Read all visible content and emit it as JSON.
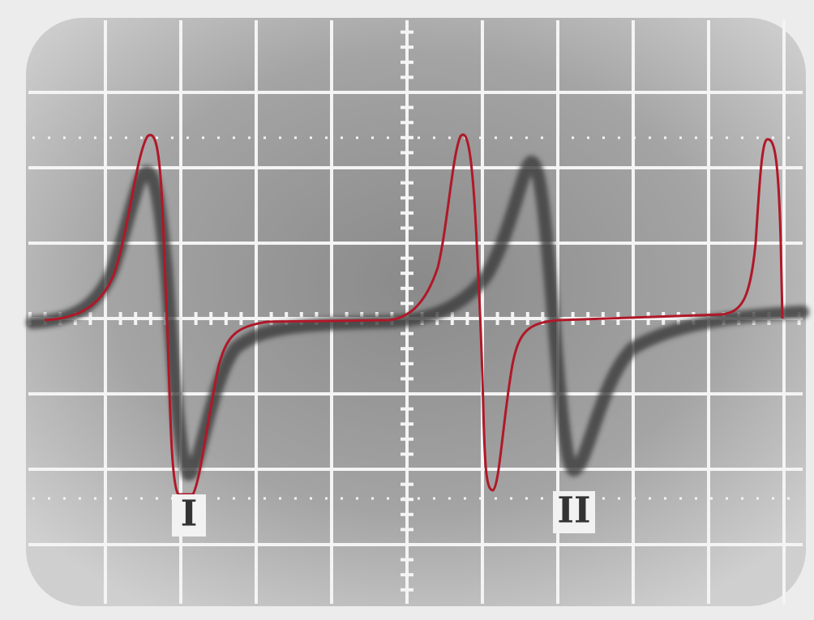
{
  "labels": {
    "trace_1": "I",
    "trace_2": "II"
  }
}
